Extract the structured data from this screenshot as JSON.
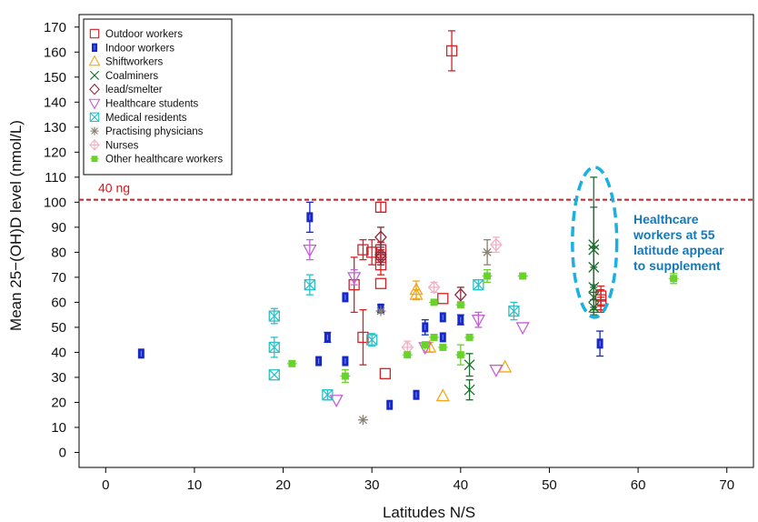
{
  "chart_data": {
    "type": "scatter",
    "xlabel": "Latitudes N/S",
    "ylabel": "Mean 25−(OH)D level (nmol/L)",
    "xlim": [
      -3,
      73
    ],
    "ylim": [
      -6,
      175
    ],
    "xticks": [
      0,
      10,
      20,
      30,
      40,
      50,
      60,
      70
    ],
    "xtick_labels": [
      "0",
      "10",
      "20",
      "30",
      "40",
      "50",
      "60",
      "70"
    ],
    "yticks": [
      0,
      10,
      20,
      30,
      40,
      50,
      60,
      70,
      80,
      90,
      100,
      110,
      120,
      130,
      140,
      150,
      160,
      170
    ],
    "ytick_labels": [
      "0",
      "10",
      "20",
      "30",
      "40",
      "50",
      "60",
      "70",
      "80",
      "90",
      "100",
      "110",
      "120",
      "130",
      "140",
      "150",
      "160",
      "170"
    ],
    "grid": false,
    "legend_position": "top-left",
    "reference_line": {
      "y": 101,
      "label": "40 ng",
      "color": "#d9161c",
      "style": "dashed"
    },
    "annotation": {
      "lines": [
        "Healthcare",
        "workers at 55",
        "latitude appear",
        "to supplement"
      ],
      "color": "#1578b8",
      "ellipse_color": "#1ab0e0",
      "ellipse_center": [
        55.1,
        84
      ],
      "ellipse_radius": [
        2.5,
        30
      ]
    },
    "series": [
      {
        "name": "Outdoor workers",
        "marker": "square",
        "color": "#d62024",
        "points": [
          [
            39,
            160.5,
            8
          ],
          [
            31,
            98,
            2
          ],
          [
            29,
            81,
            4
          ],
          [
            30,
            80,
            5
          ],
          [
            31,
            81,
            3
          ],
          [
            31,
            78,
            3
          ],
          [
            31,
            75,
            4
          ],
          [
            31,
            67.5,
            0
          ],
          [
            28,
            67,
            11
          ],
          [
            29,
            46,
            11
          ],
          [
            31.5,
            31.5,
            0
          ],
          [
            38,
            61.5,
            0
          ],
          [
            55.8,
            62.5,
            4
          ],
          [
            55.8,
            61,
            4
          ],
          [
            55.8,
            59,
            3
          ]
        ]
      },
      {
        "name": "Indoor workers",
        "marker": "bar",
        "color": "#1728c8",
        "points": [
          [
            4,
            39.5,
            0
          ],
          [
            23,
            94,
            6
          ],
          [
            25,
            46,
            2
          ],
          [
            24,
            36.5,
            0
          ],
          [
            27,
            62,
            0
          ],
          [
            27,
            36.5,
            0
          ],
          [
            31,
            57.5,
            1.5
          ],
          [
            32,
            19,
            0
          ],
          [
            35,
            23,
            0
          ],
          [
            36,
            50,
            3
          ],
          [
            38,
            54,
            0
          ],
          [
            38,
            46,
            0
          ],
          [
            40,
            53,
            2
          ],
          [
            55.7,
            43.5,
            5
          ]
        ]
      },
      {
        "name": "Shiftworkers",
        "marker": "triangle-up",
        "color": "#f2a81c",
        "points": [
          [
            35,
            65,
            3.5
          ],
          [
            35,
            63,
            2
          ],
          [
            36.5,
            42,
            2
          ],
          [
            38,
            22.5,
            0
          ],
          [
            45,
            34,
            0
          ]
        ]
      },
      {
        "name": "Coalminers",
        "marker": "x",
        "color": "#1c6e2c",
        "points": [
          [
            55,
            83,
            27
          ],
          [
            55,
            81,
            17
          ],
          [
            55,
            74,
            8
          ],
          [
            55,
            66,
            8
          ],
          [
            55,
            62,
            5
          ],
          [
            55,
            58,
            3
          ],
          [
            41,
            35,
            4.5
          ],
          [
            41,
            25,
            4
          ]
        ]
      },
      {
        "name": "lead/smelter",
        "marker": "diamond",
        "color": "#8a2a3c",
        "points": [
          [
            31,
            86,
            4
          ],
          [
            31,
            79,
            4
          ],
          [
            31,
            78,
            0
          ],
          [
            40,
            63,
            3
          ]
        ]
      },
      {
        "name": "Healthcare students",
        "marker": "triangle-down",
        "color": "#c460d8",
        "points": [
          [
            23,
            81,
            4
          ],
          [
            28,
            70,
            3
          ],
          [
            26,
            21,
            0
          ],
          [
            36,
            42,
            0
          ],
          [
            42,
            53,
            3
          ],
          [
            44,
            33,
            0
          ],
          [
            47,
            50,
            0
          ]
        ]
      },
      {
        "name": "Medical residents",
        "marker": "square-x",
        "color": "#2cc0c8",
        "points": [
          [
            19,
            54.5,
            3
          ],
          [
            19,
            42,
            4
          ],
          [
            19,
            31,
            0
          ],
          [
            23,
            67,
            4
          ],
          [
            25,
            23,
            2
          ],
          [
            30,
            45,
            2.5
          ],
          [
            42,
            67,
            2
          ],
          [
            46,
            56.5,
            3.5
          ]
        ]
      },
      {
        "name": "Practising physicians",
        "marker": "asterisk",
        "color": "#8c8070",
        "points": [
          [
            29,
            13,
            0
          ],
          [
            31,
            56.5,
            0
          ],
          [
            43,
            80,
            5
          ]
        ]
      },
      {
        "name": "Nurses",
        "marker": "diamond-plus",
        "color": "#f4b0c4",
        "points": [
          [
            34,
            42,
            2.5
          ],
          [
            37,
            66,
            2
          ],
          [
            44,
            83,
            3
          ]
        ]
      },
      {
        "name": "Other healthcare workers",
        "marker": "dot",
        "color": "#6ad22c",
        "points": [
          [
            21,
            35.5,
            0
          ],
          [
            27,
            30.5,
            2.5
          ],
          [
            34,
            39,
            0
          ],
          [
            36,
            43,
            0
          ],
          [
            37,
            46,
            0
          ],
          [
            37,
            60,
            0
          ],
          [
            38,
            42,
            0
          ],
          [
            40,
            59,
            0
          ],
          [
            40,
            39,
            4
          ],
          [
            41,
            46,
            0
          ],
          [
            43,
            70.5,
            2.5
          ],
          [
            47,
            70.5,
            0
          ],
          [
            64,
            69.5,
            2
          ]
        ]
      }
    ]
  }
}
